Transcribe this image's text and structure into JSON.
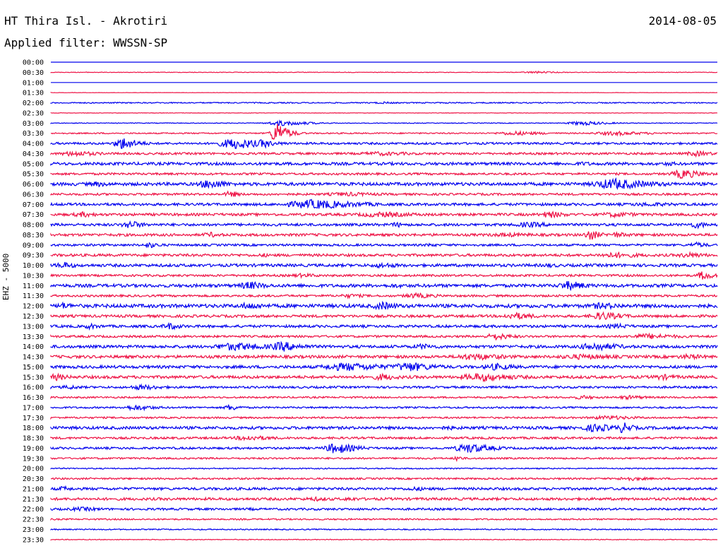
{
  "header": {
    "title": "HT Thira Isl. - Akrotiri",
    "date": "2014-08-05",
    "filter_label": "Applied filter: WWSSN-SP"
  },
  "chart_data": {
    "type": "line",
    "title": "HT Thira Isl. - Akrotiri",
    "ylabel": "EHZ - 5000",
    "xlabel": "",
    "grid": false,
    "row_labels": [
      "00:00",
      "00:30",
      "01:00",
      "01:30",
      "02:00",
      "02:30",
      "03:00",
      "03:30",
      "04:00",
      "04:30",
      "05:00",
      "05:30",
      "06:00",
      "06:30",
      "07:00",
      "07:30",
      "08:00",
      "08:30",
      "09:00",
      "09:30",
      "10:00",
      "10:30",
      "11:00",
      "11:30",
      "12:00",
      "12:30",
      "13:00",
      "13:30",
      "14:00",
      "14:30",
      "15:00",
      "15:30",
      "16:00",
      "16:30",
      "17:00",
      "17:30",
      "18:00",
      "18:30",
      "19:00",
      "19:30",
      "20:00",
      "20:30",
      "21:00",
      "21:30",
      "22:00",
      "22:30",
      "23:00",
      "23:30"
    ],
    "colors": {
      "even_rows": "#0000ee",
      "odd_rows": "#ee1144"
    },
    "rows": [
      {
        "noise": 0.0,
        "events": []
      },
      {
        "noise": 0.4,
        "events": [
          [
            0.73,
            1.5,
            0.05
          ]
        ]
      },
      {
        "noise": 0.0,
        "events": []
      },
      {
        "noise": 0.2,
        "events": []
      },
      {
        "noise": 0.8,
        "events": [
          [
            0.5,
            1.5,
            0.04
          ]
        ]
      },
      {
        "noise": 0.3,
        "events": []
      },
      {
        "noise": 0.5,
        "events": [
          [
            0.35,
            4,
            0.05
          ],
          [
            0.8,
            3,
            0.05
          ]
        ]
      },
      {
        "noise": 0.9,
        "events": [
          [
            0.34,
            16,
            0.02
          ],
          [
            0.7,
            3,
            0.07
          ],
          [
            0.85,
            3,
            0.08
          ]
        ]
      },
      {
        "noise": 1.5,
        "events": [
          [
            0.11,
            9,
            0.03
          ],
          [
            0.28,
            8,
            0.06
          ],
          [
            0.32,
            7,
            0.02
          ]
        ]
      },
      {
        "noise": 1.5,
        "events": [
          [
            0.04,
            4,
            0.06
          ],
          [
            0.5,
            3,
            0.1
          ],
          [
            0.97,
            4,
            0.04
          ]
        ]
      },
      {
        "noise": 2.0,
        "events": [
          [
            0.33,
            3,
            0.02
          ],
          [
            0.8,
            3,
            0.05
          ],
          [
            0.93,
            3,
            0.04
          ]
        ]
      },
      {
        "noise": 1.5,
        "events": [
          [
            0.95,
            7,
            0.04
          ]
        ]
      },
      {
        "noise": 2.2,
        "events": [
          [
            0.07,
            4,
            0.04
          ],
          [
            0.24,
            7,
            0.04
          ],
          [
            0.85,
            8,
            0.08
          ]
        ]
      },
      {
        "noise": 1.5,
        "events": [
          [
            0.27,
            5,
            0.02
          ],
          [
            0.45,
            3,
            0.1
          ]
        ]
      },
      {
        "noise": 1.8,
        "events": [
          [
            0.4,
            7,
            0.1
          ],
          [
            0.9,
            3,
            0.1
          ]
        ]
      },
      {
        "noise": 1.8,
        "events": [
          [
            0.05,
            4,
            0.04
          ],
          [
            0.5,
            4,
            0.1
          ],
          [
            0.75,
            5,
            0.04
          ],
          [
            0.85,
            4,
            0.06
          ]
        ]
      },
      {
        "noise": 1.8,
        "events": [
          [
            0.12,
            6,
            0.03
          ],
          [
            0.52,
            4,
            0.02
          ],
          [
            0.72,
            4,
            0.06
          ],
          [
            0.97,
            5,
            0.03
          ]
        ]
      },
      {
        "noise": 1.8,
        "events": [
          [
            0.24,
            4,
            0.03
          ],
          [
            0.69,
            3,
            0.1
          ],
          [
            0.81,
            8,
            0.02
          ],
          [
            0.85,
            4,
            0.04
          ]
        ]
      },
      {
        "noise": 1.5,
        "events": [
          [
            0.15,
            4,
            0.03
          ],
          [
            0.57,
            3,
            0.02
          ],
          [
            0.97,
            4,
            0.03
          ]
        ]
      },
      {
        "noise": 1.8,
        "events": [
          [
            0.32,
            3,
            0.02
          ],
          [
            0.85,
            4,
            0.08
          ],
          [
            0.96,
            4,
            0.05
          ]
        ]
      },
      {
        "noise": 2.0,
        "events": [
          [
            0.02,
            5,
            0.03
          ],
          [
            0.5,
            4,
            0.05
          ],
          [
            0.75,
            3,
            0.05
          ]
        ]
      },
      {
        "noise": 1.5,
        "events": [
          [
            0.38,
            3,
            0.05
          ],
          [
            0.98,
            7,
            0.02
          ]
        ]
      },
      {
        "noise": 2.2,
        "events": [
          [
            0.3,
            6,
            0.04
          ],
          [
            0.52,
            3,
            0.06
          ],
          [
            0.78,
            7,
            0.04
          ]
        ]
      },
      {
        "noise": 1.5,
        "events": [
          [
            0.45,
            3,
            0.05
          ],
          [
            0.55,
            4,
            0.05
          ]
        ]
      },
      {
        "noise": 2.5,
        "events": [
          [
            0.02,
            5,
            0.03
          ],
          [
            0.3,
            5,
            0.05
          ],
          [
            0.5,
            6,
            0.04
          ],
          [
            0.83,
            5,
            0.06
          ]
        ]
      },
      {
        "noise": 1.8,
        "events": [
          [
            0.7,
            5,
            0.05
          ],
          [
            0.83,
            6,
            0.05
          ]
        ]
      },
      {
        "noise": 1.8,
        "events": [
          [
            0.06,
            4,
            0.03
          ],
          [
            0.18,
            5,
            0.03
          ],
          [
            0.85,
            4,
            0.04
          ]
        ]
      },
      {
        "noise": 1.5,
        "events": [
          [
            0.67,
            5,
            0.04
          ],
          [
            0.9,
            4,
            0.08
          ]
        ]
      },
      {
        "noise": 2.0,
        "events": [
          [
            0.28,
            6,
            0.08
          ],
          [
            0.35,
            7,
            0.05
          ],
          [
            0.56,
            4,
            0.05
          ],
          [
            0.82,
            6,
            0.06
          ]
        ]
      },
      {
        "noise": 2.0,
        "events": [
          [
            0.64,
            5,
            0.08
          ],
          [
            0.8,
            4,
            0.1
          ],
          [
            0.96,
            4,
            0.05
          ]
        ]
      },
      {
        "noise": 2.0,
        "events": [
          [
            0.45,
            6,
            0.1
          ],
          [
            0.54,
            7,
            0.06
          ],
          [
            0.67,
            5,
            0.05
          ]
        ]
      },
      {
        "noise": 2.0,
        "events": [
          [
            0.01,
            5,
            0.03
          ],
          [
            0.5,
            5,
            0.04
          ],
          [
            0.65,
            6,
            0.08
          ],
          [
            0.92,
            4,
            0.05
          ]
        ]
      },
      {
        "noise": 1.5,
        "events": [
          [
            0.03,
            3,
            0.04
          ],
          [
            0.14,
            4,
            0.05
          ]
        ]
      },
      {
        "noise": 1.2,
        "events": [
          [
            0.8,
            3,
            0.04
          ],
          [
            0.87,
            3,
            0.05
          ]
        ]
      },
      {
        "noise": 1.2,
        "events": [
          [
            0.13,
            4,
            0.05
          ],
          [
            0.27,
            5,
            0.02
          ]
        ]
      },
      {
        "noise": 1.2,
        "events": [
          [
            0.84,
            3,
            0.08
          ]
        ]
      },
      {
        "noise": 2.0,
        "events": [
          [
            0.6,
            3,
            0.05
          ],
          [
            0.82,
            6,
            0.05
          ],
          [
            0.86,
            8,
            0.02
          ]
        ]
      },
      {
        "noise": 1.5,
        "events": [
          [
            0.3,
            4,
            0.06
          ]
        ]
      },
      {
        "noise": 1.5,
        "events": [
          [
            0.43,
            8,
            0.04
          ],
          [
            0.63,
            7,
            0.05
          ]
        ]
      },
      {
        "noise": 1.2,
        "events": [
          [
            0.61,
            5,
            0.01
          ]
        ]
      },
      {
        "noise": 0.8,
        "events": []
      },
      {
        "noise": 1.2,
        "events": [
          [
            0.87,
            3,
            0.05
          ]
        ]
      },
      {
        "noise": 1.8,
        "events": [
          [
            0.02,
            4,
            0.02
          ],
          [
            0.55,
            3,
            0.05
          ]
        ]
      },
      {
        "noise": 1.8,
        "events": [
          [
            0.4,
            3,
            0.06
          ],
          [
            0.45,
            3,
            0.03
          ]
        ]
      },
      {
        "noise": 1.5,
        "events": [
          [
            0.05,
            3,
            0.06
          ],
          [
            0.3,
            2,
            0.03
          ]
        ]
      },
      {
        "noise": 1.0,
        "events": []
      },
      {
        "noise": 0.8,
        "events": []
      },
      {
        "noise": 0.5,
        "events": []
      }
    ]
  }
}
